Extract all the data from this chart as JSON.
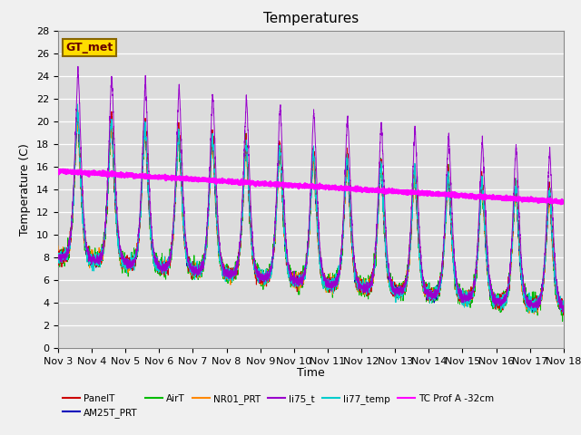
{
  "title": "Temperatures",
  "xlabel": "Time",
  "ylabel": "Temperature (C)",
  "ylim": [
    0,
    28
  ],
  "xlim": [
    0,
    15
  ],
  "x_tick_labels": [
    "Nov 3",
    "Nov 4",
    "Nov 5",
    "Nov 6",
    "Nov 7",
    "Nov 8",
    "Nov 9",
    "Nov 10",
    "Nov 11",
    "Nov 12",
    "Nov 13",
    "Nov 14",
    "Nov 15",
    "Nov 16",
    "Nov 17",
    "Nov 18"
  ],
  "background_color": "#dcdcdc",
  "fig_facecolor": "#f0f0f0",
  "series_colors": {
    "PanelT": "#cc0000",
    "AM25T_PRT": "#0000bb",
    "AirT": "#00bb00",
    "NR01_PRT": "#ff8800",
    "li75_t": "#9900cc",
    "li77_temp": "#00cccc",
    "TC_Prof": "#ff00ff"
  },
  "annotation_text": "GT_met",
  "annotation_bg": "#ffdd00",
  "annotation_border": "#886600",
  "title_fontsize": 11,
  "axis_fontsize": 9,
  "tick_fontsize": 8
}
